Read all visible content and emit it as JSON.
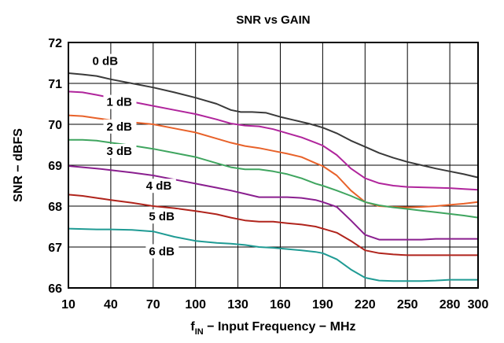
{
  "chart_data": {
    "type": "line",
    "title": "SNR vs GAIN",
    "xlabel": "f",
    "xlabel_sub": "IN",
    "xlabel_rest": " − Input Frequency − MHz",
    "ylabel": "SNR − dBFS",
    "xlim": [
      10,
      300
    ],
    "ylim": [
      66,
      72
    ],
    "x_ticks": [
      10,
      40,
      70,
      100,
      130,
      160,
      190,
      220,
      250,
      280,
      300
    ],
    "y_ticks": [
      66,
      67,
      68,
      69,
      70,
      71,
      72
    ],
    "grid": true,
    "legend": "none",
    "series": [
      {
        "name": "0 dB",
        "color": "#3a3a3a",
        "x": [
          10,
          20,
          30,
          40,
          55,
          70,
          85,
          100,
          115,
          125,
          132,
          140,
          150,
          160,
          170,
          180,
          190,
          200,
          210,
          220,
          230,
          240,
          250,
          260,
          270,
          280,
          290,
          300
        ],
        "y": [
          71.25,
          71.22,
          71.18,
          71.1,
          71.0,
          70.9,
          70.78,
          70.65,
          70.5,
          70.35,
          70.3,
          70.3,
          70.28,
          70.18,
          70.1,
          70.02,
          69.92,
          69.78,
          69.6,
          69.45,
          69.3,
          69.18,
          69.08,
          69.0,
          68.92,
          68.85,
          68.78,
          68.7
        ]
      },
      {
        "name": "1 dB",
        "color": "#b0259c",
        "x": [
          10,
          20,
          30,
          40,
          55,
          70,
          85,
          100,
          115,
          125,
          135,
          145,
          155,
          165,
          175,
          185,
          190,
          200,
          210,
          220,
          230,
          240,
          250,
          260,
          270,
          280,
          290,
          300
        ],
        "y": [
          70.8,
          70.78,
          70.72,
          70.65,
          70.55,
          70.45,
          70.35,
          70.25,
          70.12,
          70.02,
          69.97,
          69.95,
          69.88,
          69.78,
          69.68,
          69.55,
          69.48,
          69.25,
          68.92,
          68.68,
          68.56,
          68.5,
          68.47,
          68.46,
          68.45,
          68.44,
          68.42,
          68.4
        ]
      },
      {
        "name": "2 dB",
        "color": "#e8622a",
        "x": [
          10,
          20,
          30,
          40,
          55,
          70,
          85,
          100,
          115,
          125,
          135,
          145,
          155,
          165,
          175,
          185,
          190,
          200,
          210,
          220,
          230,
          240,
          250,
          260,
          270,
          280,
          290,
          300
        ],
        "y": [
          70.22,
          70.2,
          70.15,
          70.1,
          70.05,
          70.0,
          69.9,
          69.8,
          69.65,
          69.55,
          69.47,
          69.42,
          69.35,
          69.28,
          69.2,
          69.05,
          68.98,
          68.75,
          68.38,
          68.1,
          68.0,
          67.98,
          67.97,
          67.98,
          68.0,
          68.03,
          68.06,
          68.1
        ]
      },
      {
        "name": "3 dB",
        "color": "#3fa55f",
        "x": [
          10,
          20,
          30,
          40,
          55,
          70,
          85,
          100,
          115,
          125,
          135,
          145,
          155,
          165,
          175,
          185,
          190,
          200,
          210,
          220,
          230,
          240,
          250,
          260,
          270,
          280,
          290,
          300
        ],
        "y": [
          69.62,
          69.62,
          69.6,
          69.55,
          69.48,
          69.4,
          69.3,
          69.2,
          69.05,
          68.95,
          68.9,
          68.9,
          68.85,
          68.78,
          68.68,
          68.55,
          68.5,
          68.38,
          68.25,
          68.1,
          68.02,
          67.97,
          67.93,
          67.89,
          67.85,
          67.81,
          67.77,
          67.72
        ]
      },
      {
        "name": "4 dB",
        "color": "#8a1f8f",
        "x": [
          10,
          20,
          30,
          40,
          55,
          70,
          85,
          100,
          115,
          125,
          135,
          145,
          155,
          165,
          175,
          185,
          190,
          200,
          210,
          220,
          230,
          240,
          250,
          260,
          270,
          280,
          290,
          300
        ],
        "y": [
          68.98,
          68.95,
          68.92,
          68.88,
          68.82,
          68.75,
          68.65,
          68.55,
          68.45,
          68.38,
          68.3,
          68.22,
          68.22,
          68.22,
          68.2,
          68.15,
          68.1,
          67.98,
          67.65,
          67.3,
          67.18,
          67.18,
          67.18,
          67.18,
          67.2,
          67.2,
          67.2,
          67.2
        ]
      },
      {
        "name": "5 dB",
        "color": "#b0241c",
        "x": [
          10,
          20,
          30,
          40,
          55,
          70,
          85,
          100,
          115,
          125,
          135,
          145,
          155,
          165,
          175,
          185,
          190,
          200,
          210,
          220,
          230,
          240,
          250,
          260,
          270,
          280,
          290,
          300
        ],
        "y": [
          68.28,
          68.25,
          68.2,
          68.15,
          68.08,
          68.0,
          67.95,
          67.88,
          67.8,
          67.72,
          67.65,
          67.62,
          67.62,
          67.58,
          67.55,
          67.5,
          67.45,
          67.35,
          67.15,
          66.92,
          66.85,
          66.82,
          66.8,
          66.8,
          66.8,
          66.8,
          66.8,
          66.8
        ]
      },
      {
        "name": "6 dB",
        "color": "#1f9b94",
        "x": [
          10,
          20,
          30,
          40,
          55,
          70,
          85,
          100,
          115,
          125,
          135,
          145,
          155,
          165,
          175,
          185,
          190,
          200,
          210,
          220,
          230,
          240,
          250,
          260,
          270,
          280,
          290,
          300
        ],
        "y": [
          67.45,
          67.44,
          67.43,
          67.43,
          67.42,
          67.38,
          67.25,
          67.15,
          67.1,
          67.08,
          67.05,
          67.0,
          66.98,
          66.95,
          66.92,
          66.88,
          66.85,
          66.7,
          66.45,
          66.25,
          66.18,
          66.17,
          66.17,
          66.17,
          66.18,
          66.2,
          66.2,
          66.2
        ]
      }
    ]
  }
}
